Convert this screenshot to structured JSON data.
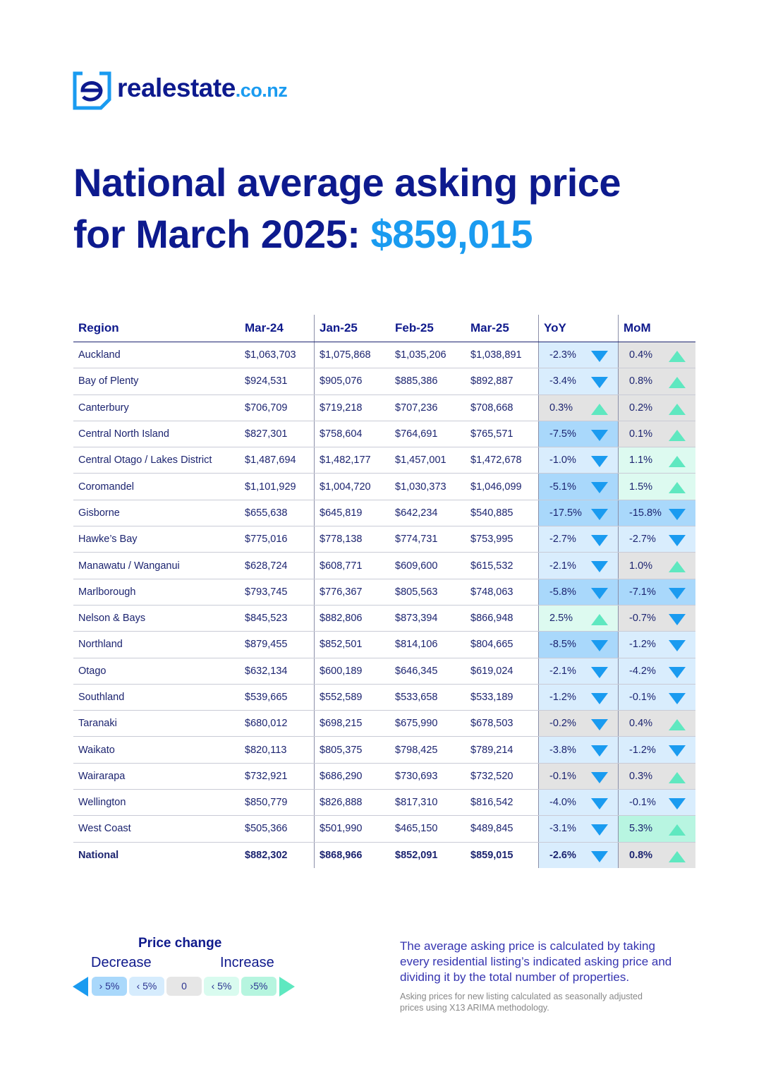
{
  "header": {
    "logo_main": "realestate",
    "logo_domain": ".co.nz"
  },
  "title": {
    "line1": "National average asking price",
    "line2": "for March 2025:",
    "highlight": "$859,015"
  },
  "table": {
    "columns": [
      "Region",
      "Mar-24",
      "Jan-25",
      "Feb-25",
      "Mar-25",
      "YoY",
      "MoM"
    ],
    "rows": [
      {
        "cells": [
          "Auckland",
          "$1,063,703",
          "$1,075,868",
          "$1,035,206",
          "$1,038,891",
          "-2.3%",
          "0.4%"
        ],
        "yoy_color": "#d9edfd",
        "mom_color": "#e3e3e3"
      },
      {
        "cells": [
          "Bay of Plenty",
          "$924,531",
          "$905,076",
          "$885,386",
          "$892,887",
          "-3.4%",
          "0.8%"
        ],
        "yoy_color": "#d9edfd",
        "mom_color": "#e3e3e3"
      },
      {
        "cells": [
          "Canterbury",
          "$706,709",
          "$719,218",
          "$707,236",
          "$708,668",
          "0.3%",
          "0.2%"
        ],
        "yoy_color": "#e3e3e3",
        "mom_color": "#e3e3e3"
      },
      {
        "cells": [
          "Central North Island",
          "$827,301",
          "$758,604",
          "$764,691",
          "$765,571",
          "-7.5%",
          "0.1%"
        ],
        "yoy_color": "#a9d8fb",
        "mom_color": "#e3e3e3"
      },
      {
        "cells": [
          "Central Otago / Lakes District",
          "$1,487,694",
          "$1,482,177",
          "$1,457,001",
          "$1,472,678",
          "-1.0%",
          "1.1%"
        ],
        "yoy_color": "#d9edfd",
        "mom_color": "#ddfaf0"
      },
      {
        "cells": [
          "Coromandel",
          "$1,101,929",
          "$1,004,720",
          "$1,030,373",
          "$1,046,099",
          "-5.1%",
          "1.5%"
        ],
        "yoy_color": "#a9d8fb",
        "mom_color": "#ddfaf0"
      },
      {
        "cells": [
          "Gisborne",
          "$655,638",
          "$645,819",
          "$642,234",
          "$540,885",
          "-17.5%",
          "-15.8%"
        ],
        "yoy_color": "#a9d8fb",
        "mom_color": "#a9d8fb"
      },
      {
        "cells": [
          "Hawke’s Bay",
          "$775,016",
          "$778,138",
          "$774,731",
          "$753,995",
          "-2.7%",
          "-2.7%"
        ],
        "yoy_color": "#d9edfd",
        "mom_color": "#d9edfd"
      },
      {
        "cells": [
          "Manawatu / Wanganui",
          "$628,724",
          "$608,771",
          "$609,600",
          "$615,532",
          "-2.1%",
          "1.0%"
        ],
        "yoy_color": "#d9edfd",
        "mom_color": "#e3e3e3"
      },
      {
        "cells": [
          "Marlborough",
          "$793,745",
          "$776,367",
          "$805,563",
          "$748,063",
          "-5.8%",
          "-7.1%"
        ],
        "yoy_color": "#a9d8fb",
        "mom_color": "#a9d8fb"
      },
      {
        "cells": [
          "Nelson & Bays",
          "$845,523",
          "$882,806",
          "$873,394",
          "$866,948",
          "2.5%",
          "-0.7%"
        ],
        "yoy_color": "#ddfaf0",
        "mom_color": "#e3e3e3"
      },
      {
        "cells": [
          "Northland",
          "$879,455",
          "$852,501",
          "$814,106",
          "$804,665",
          "-8.5%",
          "-1.2%"
        ],
        "yoy_color": "#a9d8fb",
        "mom_color": "#d9edfd"
      },
      {
        "cells": [
          "Otago",
          "$632,134",
          "$600,189",
          "$646,345",
          "$619,024",
          "-2.1%",
          "-4.2%"
        ],
        "yoy_color": "#d9edfd",
        "mom_color": "#d9edfd"
      },
      {
        "cells": [
          "Southland",
          "$539,665",
          "$552,589",
          "$533,658",
          "$533,189",
          "-1.2%",
          "-0.1%"
        ],
        "yoy_color": "#d9edfd",
        "mom_color": "#d9edfd"
      },
      {
        "cells": [
          "Taranaki",
          "$680,012",
          "$698,215",
          "$675,990",
          "$678,503",
          "-0.2%",
          "0.4%"
        ],
        "yoy_color": "#e3e3e3",
        "mom_color": "#e3e3e3"
      },
      {
        "cells": [
          "Waikato",
          "$820,113",
          "$805,375",
          "$798,425",
          "$789,214",
          "-3.8%",
          "-1.2%"
        ],
        "yoy_color": "#d9edfd",
        "mom_color": "#d9edfd"
      },
      {
        "cells": [
          "Wairarapa",
          "$732,921",
          "$686,290",
          "$730,693",
          "$732,520",
          "-0.1%",
          "0.3%"
        ],
        "yoy_color": "#e3e3e3",
        "mom_color": "#e3e3e3"
      },
      {
        "cells": [
          "Wellington",
          "$850,779",
          "$826,888",
          "$817,310",
          "$816,542",
          "-4.0%",
          "-0.1%"
        ],
        "yoy_color": "#d9edfd",
        "mom_color": "#d9edfd"
      },
      {
        "cells": [
          "West Coast",
          "$505,366",
          "$501,990",
          "$465,150",
          "$489,845",
          "-3.1%",
          "5.3%"
        ],
        "yoy_color": "#d9edfd",
        "mom_color": "#b8f5e1"
      }
    ],
    "total": {
      "cells": [
        "National",
        "$882,302",
        "$868,966",
        "$852,091",
        "$859,015",
        "-2.6%",
        "0.8%"
      ],
      "yoy_color": "#d9edfd",
      "mom_color": "#e3e3e3"
    }
  },
  "legend": {
    "title": "Price change",
    "decrease": "Decrease",
    "increase": "Increase",
    "chips": [
      {
        "label": "› 5%",
        "color": "#a9d8fb"
      },
      {
        "label": "‹ 5%",
        "color": "#d6ecfd"
      },
      {
        "label": "0",
        "color": "#e6e6e6"
      },
      {
        "label": "‹ 5%",
        "color": "#d9fbef"
      },
      {
        "label": "›5%",
        "color": "#b6f5df"
      }
    ]
  },
  "note": {
    "lines": [
      "The average asking price is calculated by taking",
      "every residential listing’s indicated asking price and",
      "dividing it by the total number of properties."
    ]
  },
  "footnote": {
    "lines": [
      "Asking prices for new listing calculated as seasonally adjusted",
      "prices using X13 ARIMA methodology."
    ]
  }
}
